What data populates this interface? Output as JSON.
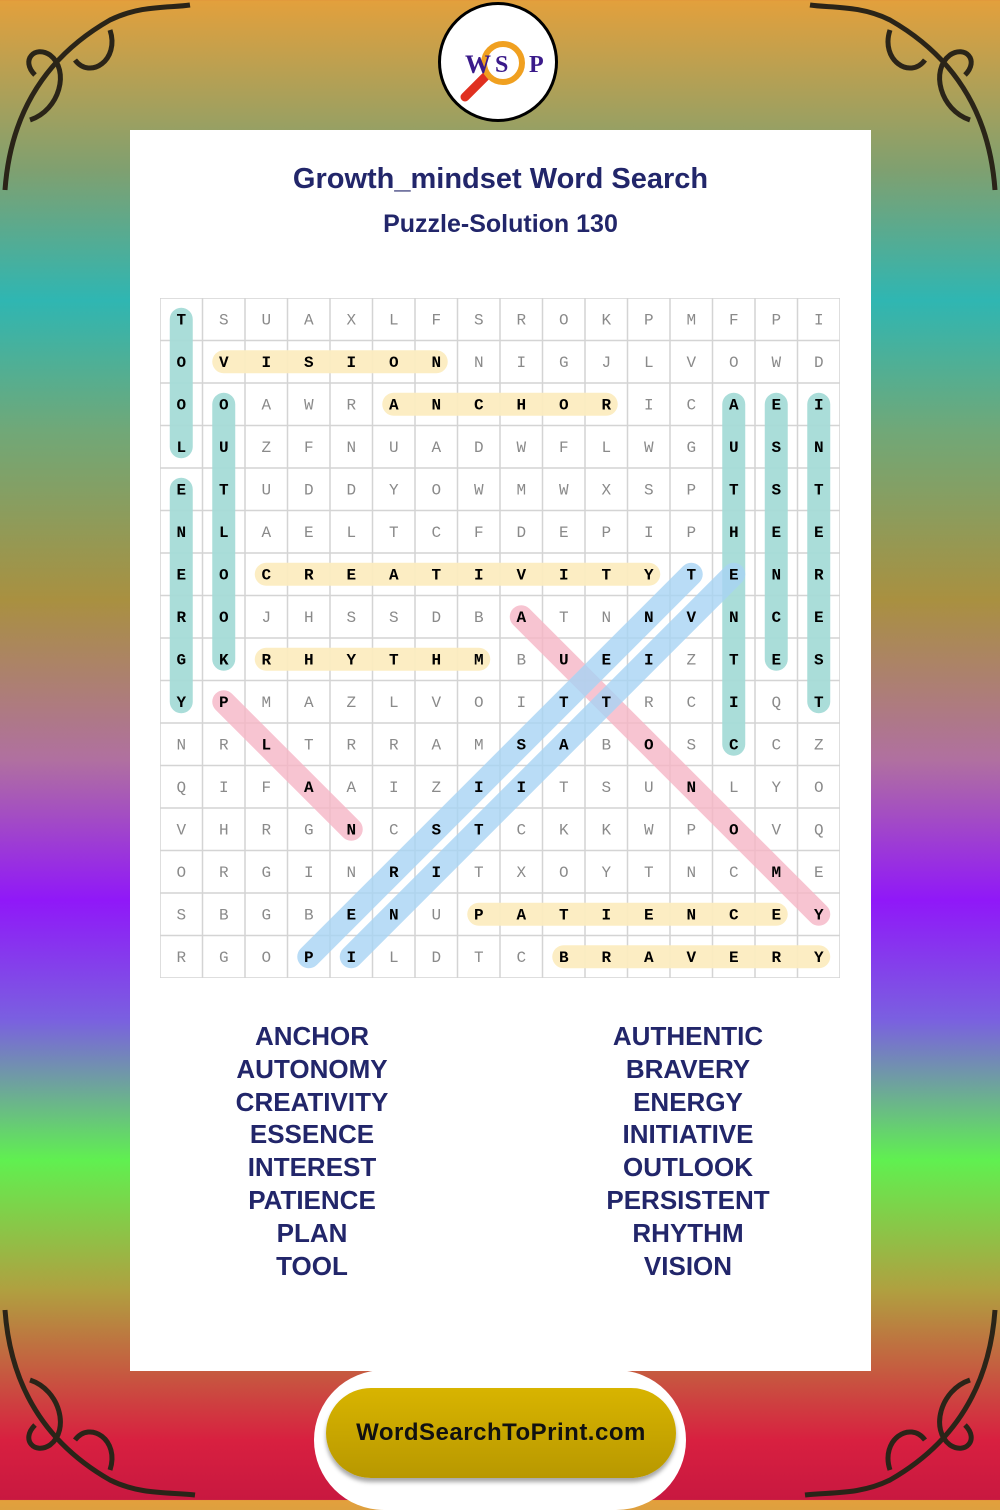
{
  "logo": {
    "letters": [
      "W",
      "S",
      "P"
    ],
    "icon": "magnifier-icon"
  },
  "title": "Growth_mindset Word Search",
  "subtitle": "Puzzle-Solution 130",
  "grid": {
    "rows": [
      "TSUAXLFSROKPMFPI",
      "OVISIONNIGJLVOWD",
      "OOAWRANCHORICAEI",
      "LUZFNUADWFLWGUSN",
      "ETUDDYOWMWXSPTST",
      "NLAELTCFDEPIPHEE",
      "EOCREATIVITYTENR",
      "ROJHSSDBATNNVNCE",
      "GKRHYTHMBUEIZTES",
      "YPMAZLVOITTRCIQT",
      "NRLTRRAMSABOSCCZ",
      "QIFAAIZIITSUNLYO",
      "VHRGNCSTCKKWPOVQ",
      "ORGINRITXOYTNCME",
      "SBGBENUPATIENCEY",
      "RGOPILDTCBRAVERY"
    ]
  },
  "colors": {
    "teal": "#a6dcd8",
    "yellow": "#fcedc0",
    "pink": "#f6b6c6",
    "blue": "#a8d4f4",
    "text": "#22266a",
    "footer": "#c8a800"
  },
  "solutions": [
    {
      "word": "TOOL",
      "start": [
        1,
        1
      ],
      "end": [
        4,
        1
      ],
      "color": "teal"
    },
    {
      "word": "ENERGY",
      "start": [
        5,
        1
      ],
      "end": [
        10,
        1
      ],
      "color": "teal"
    },
    {
      "word": "OUTLOOK",
      "start": [
        3,
        2
      ],
      "end": [
        9,
        2
      ],
      "color": "teal"
    },
    {
      "word": "AUTHENTIC",
      "start": [
        3,
        14
      ],
      "end": [
        11,
        14
      ],
      "color": "teal"
    },
    {
      "word": "ESSENCE",
      "start": [
        3,
        15
      ],
      "end": [
        9,
        15
      ],
      "color": "teal"
    },
    {
      "word": "INTEREST",
      "start": [
        3,
        16
      ],
      "end": [
        10,
        16
      ],
      "color": "teal"
    },
    {
      "word": "VISION",
      "start": [
        2,
        2
      ],
      "end": [
        2,
        7
      ],
      "color": "yellow"
    },
    {
      "word": "ANCHOR",
      "start": [
        3,
        6
      ],
      "end": [
        3,
        11
      ],
      "color": "yellow"
    },
    {
      "word": "CREATIVITY",
      "start": [
        7,
        3
      ],
      "end": [
        7,
        12
      ],
      "color": "yellow"
    },
    {
      "word": "RHYTHM",
      "start": [
        9,
        3
      ],
      "end": [
        9,
        8
      ],
      "color": "yellow"
    },
    {
      "word": "PATIENCE",
      "start": [
        15,
        8
      ],
      "end": [
        15,
        15
      ],
      "color": "yellow"
    },
    {
      "word": "BRAVERY",
      "start": [
        16,
        10
      ],
      "end": [
        16,
        16
      ],
      "color": "yellow"
    },
    {
      "word": "PLAN",
      "start": [
        10,
        2
      ],
      "end": [
        13,
        5
      ],
      "color": "pink"
    },
    {
      "word": "AUTONOMY",
      "start": [
        8,
        9
      ],
      "end": [
        15,
        16
      ],
      "color": "pink"
    },
    {
      "word": "PERSISTENT",
      "start": [
        16,
        4
      ],
      "end": [
        7,
        13
      ],
      "color": "blue"
    },
    {
      "word": "INITIATIVE",
      "start": [
        16,
        5
      ],
      "end": [
        7,
        14
      ],
      "color": "blue"
    }
  ],
  "word_list": {
    "left": [
      "ANCHOR",
      "AUTONOMY",
      "CREATIVITY",
      "ESSENCE",
      "INTEREST",
      "PATIENCE",
      "PLAN",
      "TOOL"
    ],
    "right": [
      "AUTHENTIC",
      "BRAVERY",
      "ENERGY",
      "INITIATIVE",
      "OUTLOOK",
      "PERSISTENT",
      "RHYTHM",
      "VISION"
    ]
  },
  "footer": "WordSearchToPrint.com"
}
